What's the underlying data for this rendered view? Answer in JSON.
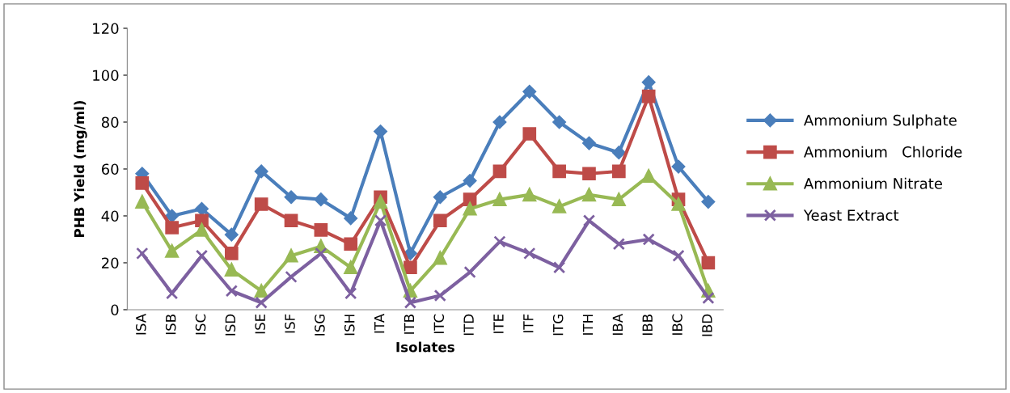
{
  "chart_data": {
    "type": "line",
    "xlabel": "Isolates",
    "ylabel": "PHB Yield (mg/ml)",
    "categories": [
      "ISA",
      "ISB",
      "ISC",
      "ISD",
      "ISE",
      "ISF",
      "ISG",
      "ISH",
      "ITA",
      "ITB",
      "ITC",
      "ITD",
      "ITE",
      "ITF",
      "ITG",
      "ITH",
      "IBA",
      "IBB",
      "IBC",
      "IBD"
    ],
    "series": [
      {
        "name": "Ammonium Sulphate",
        "color": "#4a7ebb",
        "marker": "diamond",
        "values": [
          58,
          40,
          43,
          32,
          59,
          48,
          47,
          39,
          76,
          24,
          48,
          55,
          80,
          93,
          80,
          71,
          67,
          97,
          61,
          46
        ]
      },
      {
        "name": "Ammonium   Chloride",
        "color": "#be4b48",
        "marker": "square",
        "values": [
          54,
          35,
          38,
          24,
          45,
          38,
          34,
          28,
          48,
          18,
          38,
          47,
          59,
          75,
          59,
          58,
          59,
          91,
          47,
          20
        ]
      },
      {
        "name": "Ammonium Nitrate",
        "color": "#98b954",
        "marker": "triangle",
        "values": [
          46,
          25,
          34,
          17,
          8,
          23,
          27,
          18,
          46,
          8,
          22,
          43,
          47,
          49,
          44,
          49,
          47,
          57,
          45,
          8
        ]
      },
      {
        "name": "Yeast Extract",
        "color": "#7d60a0",
        "marker": "cross",
        "values": [
          24,
          7,
          23,
          8,
          3,
          14,
          24,
          7,
          38,
          3,
          6,
          16,
          29,
          24,
          18,
          38,
          28,
          30,
          23,
          5
        ]
      }
    ],
    "ylim": [
      0,
      120
    ],
    "yticks": [
      0,
      20,
      40,
      60,
      80,
      100,
      120
    ],
    "grid": false,
    "legend": "right"
  }
}
